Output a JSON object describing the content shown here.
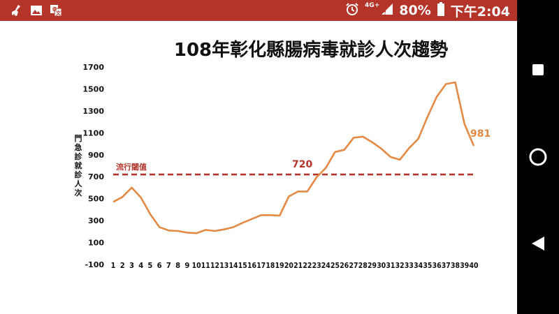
{
  "status_bar": {
    "left_icons": [
      "broom-icon",
      "image-icon",
      "translate-icon"
    ],
    "right_icons": [
      "alarm-clock-icon",
      "signal-icon"
    ],
    "network_label": "4G+",
    "battery": "80%",
    "time": "下午2:04",
    "bg_color": "#b5342a"
  },
  "nav_bar": {
    "buttons": [
      "recent-apps-button",
      "home-button",
      "back-button"
    ]
  },
  "chart_data": {
    "type": "line",
    "title": "108年彰化縣腸病毒就診人次趨勢",
    "ylabel": "門急診就診人次",
    "xlabel": "",
    "ylim": [
      -100,
      1700
    ],
    "yticks": [
      -100,
      100,
      300,
      500,
      700,
      900,
      1100,
      1300,
      1500,
      1700
    ],
    "x": [
      "1",
      "2",
      "3",
      "4",
      "5",
      "6",
      "7",
      "8",
      "9",
      "10",
      "11",
      "12",
      "13",
      "14",
      "15",
      "16",
      "17",
      "18",
      "19",
      "20",
      "21",
      "22",
      "23",
      "24",
      "25",
      "26",
      "27",
      "28",
      "29",
      "30",
      "31",
      "32",
      "33",
      "34",
      "35",
      "36",
      "37",
      "38",
      "39",
      "40"
    ],
    "series": [
      {
        "values": [
          470,
          515,
          600,
          510,
          360,
          240,
          210,
          205,
          190,
          185,
          215,
          205,
          220,
          240,
          280,
          315,
          350,
          350,
          345,
          520,
          565,
          565,
          695,
          780,
          925,
          945,
          1055,
          1065,
          1015,
          955,
          880,
          855,
          960,
          1045,
          1245,
          1430,
          1545,
          1560,
          1180,
          981
        ],
        "color": "#e48a45"
      }
    ],
    "threshold": {
      "value": 720,
      "label": "流行閾值",
      "value_label": "720",
      "color": "#b5342a"
    },
    "end_label": "981"
  }
}
